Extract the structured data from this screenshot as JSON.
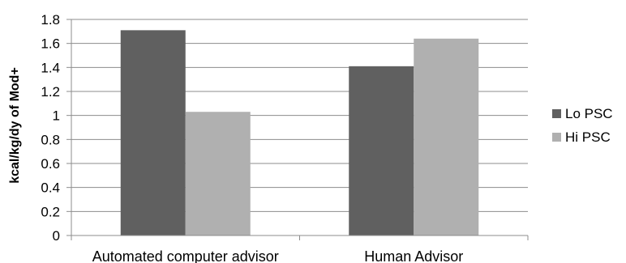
{
  "chart_data": {
    "type": "bar",
    "title": "",
    "xlabel": "",
    "ylabel": "kcal/kg/dy of Mod+",
    "categories": [
      "Automated computer advisor",
      "Human Advisor"
    ],
    "series": [
      {
        "name": "Lo PSC",
        "values": [
          1.71,
          1.41
        ],
        "color": "#606060"
      },
      {
        "name": "Hi PSC",
        "values": [
          1.03,
          1.64
        ],
        "color": "#b0b0b0"
      }
    ],
    "ylim": [
      0,
      1.8
    ],
    "yticks": [
      "0",
      "0.2",
      "0.4",
      "0.6",
      "0.8",
      "1",
      "1.2",
      "1.4",
      "1.6",
      "1.8"
    ],
    "grid": true,
    "legend_position": "right"
  }
}
